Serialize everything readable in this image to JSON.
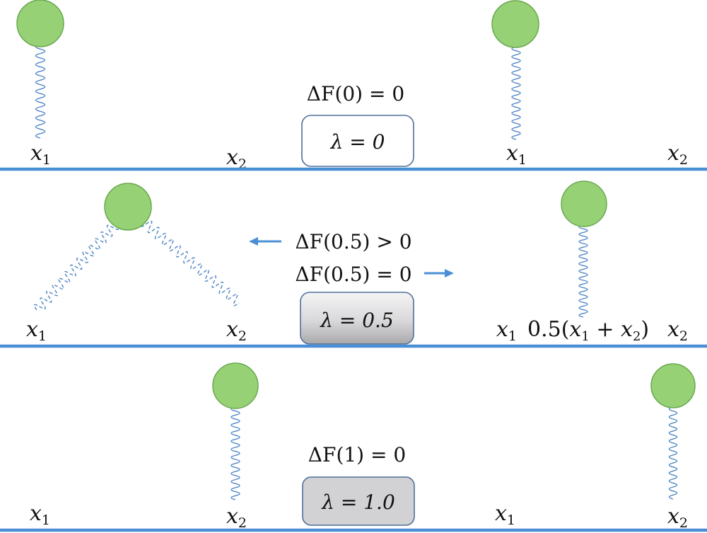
{
  "colors": {
    "ground": "#4a8fd6",
    "ball_fill": "#96d275",
    "ball_stroke": "#6aa84f",
    "spring": "#4f86c6",
    "arrow": "#4a8fd6",
    "red_text": "#e8171b",
    "box_stroke": "#4f6f9a",
    "box_gray": "#d2d2d4"
  },
  "panels": [
    {
      "equation": "ΔF(0)  = 0",
      "lambda": "λ = 0",
      "labels": {
        "a_x1": "x",
        "a_x1_sub": "1",
        "a_x2": "x",
        "a_x2_sub": "2",
        "b_x1": "x",
        "b_x1_sub": "1",
        "b_x2": "x",
        "b_x2_sub": "2"
      }
    },
    {
      "equation_red": "ΔF(0.5) > 0",
      "equation": "ΔF(0.5)  = 0",
      "lambda": "λ = 0.5",
      "labels": {
        "a_x1": "x",
        "a_x1_sub": "1",
        "a_x2": "x",
        "a_x2_sub": "2",
        "b_x1": "x",
        "b_x1_sub": "1",
        "b_x2": "x",
        "b_x2_sub": "2",
        "mid_prefix": "0.5(",
        "mid_x1": "x",
        "mid_x1_sub": "1",
        "mid_plus": " + ",
        "mid_x2": "x",
        "mid_x2_sub": "2",
        "mid_suffix": ")"
      }
    },
    {
      "equation": "ΔF(1)  = 0",
      "lambda": "λ = 1.0",
      "labels": {
        "a_x1": "x",
        "a_x1_sub": "1",
        "a_x2": "x",
        "a_x2_sub": "2",
        "b_x1": "x",
        "b_x1_sub": "1",
        "b_x2": "x",
        "b_x2_sub": "2"
      }
    }
  ]
}
